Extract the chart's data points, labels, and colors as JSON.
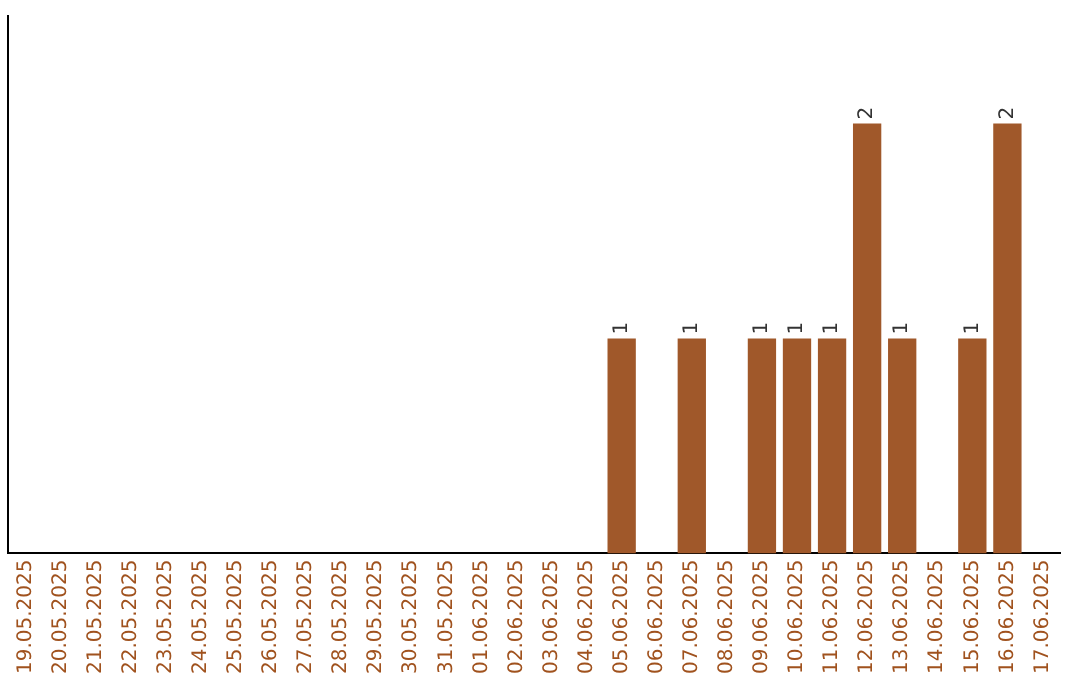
{
  "chart_data": {
    "type": "bar",
    "categories": [
      "19.05.2025",
      "20.05.2025",
      "21.05.2025",
      "22.05.2025",
      "23.05.2025",
      "24.05.2025",
      "25.05.2025",
      "26.05.2025",
      "27.05.2025",
      "28.05.2025",
      "29.05.2025",
      "30.05.2025",
      "31.05.2025",
      "01.06.2025",
      "02.06.2025",
      "03.06.2025",
      "04.06.2025",
      "05.06.2025",
      "06.06.2025",
      "07.06.2025",
      "08.06.2025",
      "09.06.2025",
      "10.06.2025",
      "11.06.2025",
      "12.06.2025",
      "13.06.2025",
      "14.06.2025",
      "15.06.2025",
      "16.06.2025",
      "17.06.2025"
    ],
    "values": [
      null,
      null,
      null,
      null,
      null,
      null,
      null,
      null,
      null,
      null,
      null,
      null,
      null,
      null,
      null,
      null,
      null,
      1,
      null,
      1,
      null,
      1,
      1,
      1,
      2,
      1,
      null,
      1,
      2,
      null
    ],
    "value_labels": [
      null,
      null,
      null,
      null,
      null,
      null,
      null,
      null,
      null,
      null,
      null,
      null,
      null,
      null,
      null,
      null,
      null,
      "1",
      null,
      "1",
      null,
      "1",
      "1",
      "1",
      "2",
      "1",
      null,
      "1",
      "2",
      null
    ],
    "color": "#a0582a",
    "grid": false,
    "legend": false,
    "tick_labels": "x"
  }
}
